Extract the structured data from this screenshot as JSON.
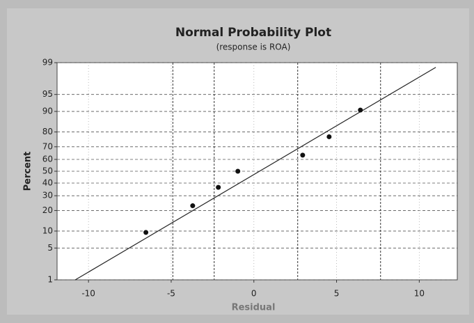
{
  "chart_data": {
    "type": "probability",
    "title": "Normal Probability Plot",
    "subtitle": "(response is ROA)",
    "x_label": "Residual",
    "y_label": "Percent",
    "y_scale": "normal-probability",
    "xlim": [
      -11.9,
      12.3
    ],
    "xticks": [
      -10,
      -5,
      0,
      5,
      10
    ],
    "ylim": [
      1,
      99
    ],
    "yticks": [
      1,
      5,
      10,
      20,
      30,
      40,
      50,
      60,
      70,
      80,
      90,
      95,
      99
    ],
    "grid": true,
    "x_reference_lines": [
      -4.9,
      -2.4,
      2.65,
      7.66
    ],
    "series": [
      {
        "color": "#111111",
        "x": [
          -6.53,
          -3.7,
          -2.15,
          -0.97,
          2.95,
          4.55,
          6.44
        ],
        "values": [
          9.5,
          23,
          36.5,
          50,
          63.5,
          77,
          90.5
        ]
      }
    ],
    "fit_line": {
      "color": "#222222",
      "x": [
        -10.8,
        11.0
      ],
      "values": [
        1,
        98.7
      ]
    }
  }
}
